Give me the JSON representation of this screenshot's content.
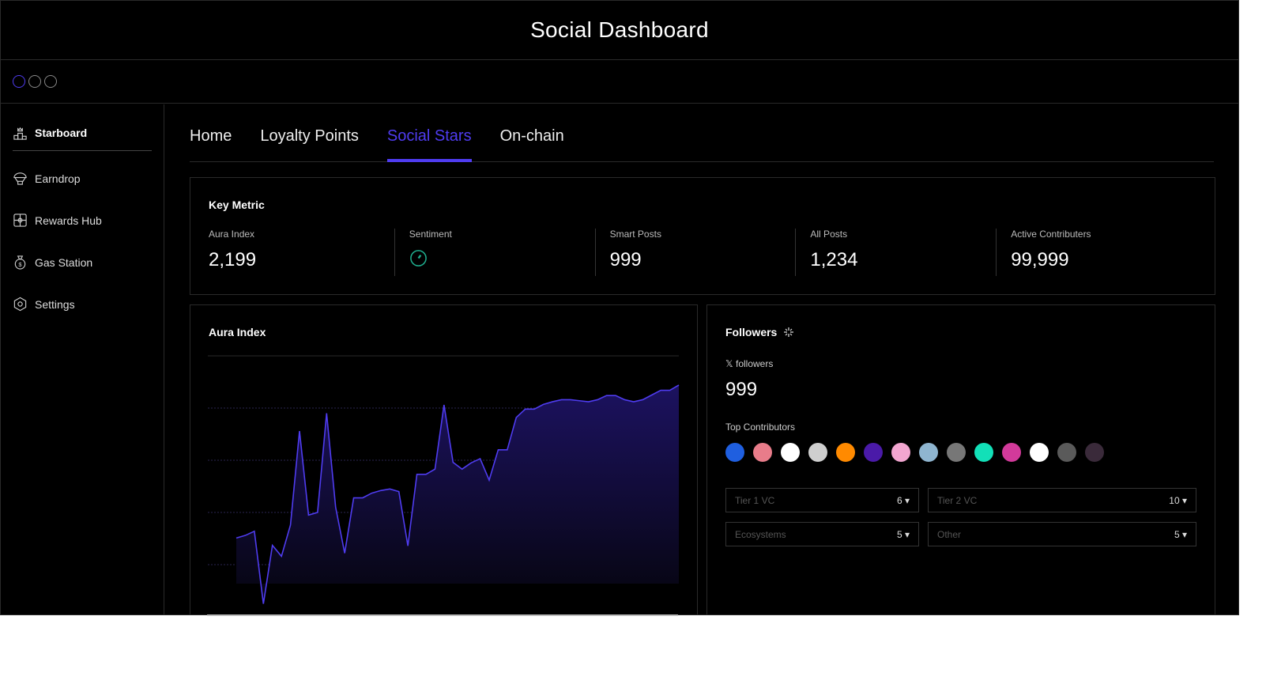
{
  "title": "Social Dashboard",
  "sidebar": {
    "items": [
      {
        "label": "Starboard",
        "icon": "podium-icon"
      },
      {
        "label": "Earndrop",
        "icon": "parachute-icon"
      },
      {
        "label": "Rewards Hub",
        "icon": "gift-icon"
      },
      {
        "label": "Gas Station",
        "icon": "money-bag-icon"
      },
      {
        "label": "Settings",
        "icon": "settings-hexagon-icon"
      }
    ]
  },
  "tabs": [
    {
      "label": "Home"
    },
    {
      "label": "Loyalty Points"
    },
    {
      "label": "Social Stars",
      "active": true
    },
    {
      "label": "On-chain"
    }
  ],
  "key_metric": {
    "title": "Key Metric",
    "items": [
      {
        "label": "Aura Index",
        "value": "2,199"
      },
      {
        "label": "Sentiment",
        "icon": "gauge-icon"
      },
      {
        "label": "Smart Posts",
        "value": "999"
      },
      {
        "label": "All Posts",
        "value": "1,234"
      },
      {
        "label": "Active Contributers",
        "value": "99,999"
      }
    ]
  },
  "aura": {
    "title": "Aura Index"
  },
  "followers": {
    "title": "Followers",
    "x_label": "𝕏 followers",
    "x_value": "999",
    "top_label": "Top Contributors",
    "avatar_colors": [
      "#1f5fe0",
      "#e87c8a",
      "#ffffff",
      "#cfcfcf",
      "#ff8a00",
      "#4a1aa8",
      "#f2a6d0",
      "#8fb5d0",
      "#777777",
      "#12e0b8",
      "#d23a9a",
      "#ffffff",
      "#5a5a5a",
      "#3a2a3a"
    ],
    "selects": [
      {
        "placeholder": "Tier 1 VC",
        "value": "6"
      },
      {
        "placeholder": "Tier 2 VC",
        "value": "10"
      },
      {
        "placeholder": "Ecosystems",
        "value": "5"
      },
      {
        "placeholder": "Other",
        "value": "5"
      }
    ]
  },
  "colors": {
    "accent": "#4f3cf0",
    "sentiment": "#1fae8e"
  },
  "chart_data": {
    "type": "area",
    "title": "Aura Index",
    "ylim": [
      0,
      5
    ],
    "grid": true,
    "values": [
      1.51,
      1.56,
      1.64,
      0.25,
      1.37,
      1.16,
      1.76,
      3.56,
      1.95,
      2.0,
      3.9,
      2.1,
      1.22,
      2.28,
      2.28,
      2.37,
      2.42,
      2.45,
      2.4,
      1.36,
      2.73,
      2.73,
      2.83,
      4.06,
      2.96,
      2.83,
      2.95,
      3.03,
      2.62,
      3.2,
      3.2,
      3.82,
      3.98,
      3.98,
      4.07,
      4.12,
      4.16,
      4.16,
      4.14,
      4.12,
      4.16,
      4.24,
      4.24,
      4.16,
      4.12,
      4.16,
      4.25,
      4.34,
      4.34,
      4.44
    ]
  }
}
